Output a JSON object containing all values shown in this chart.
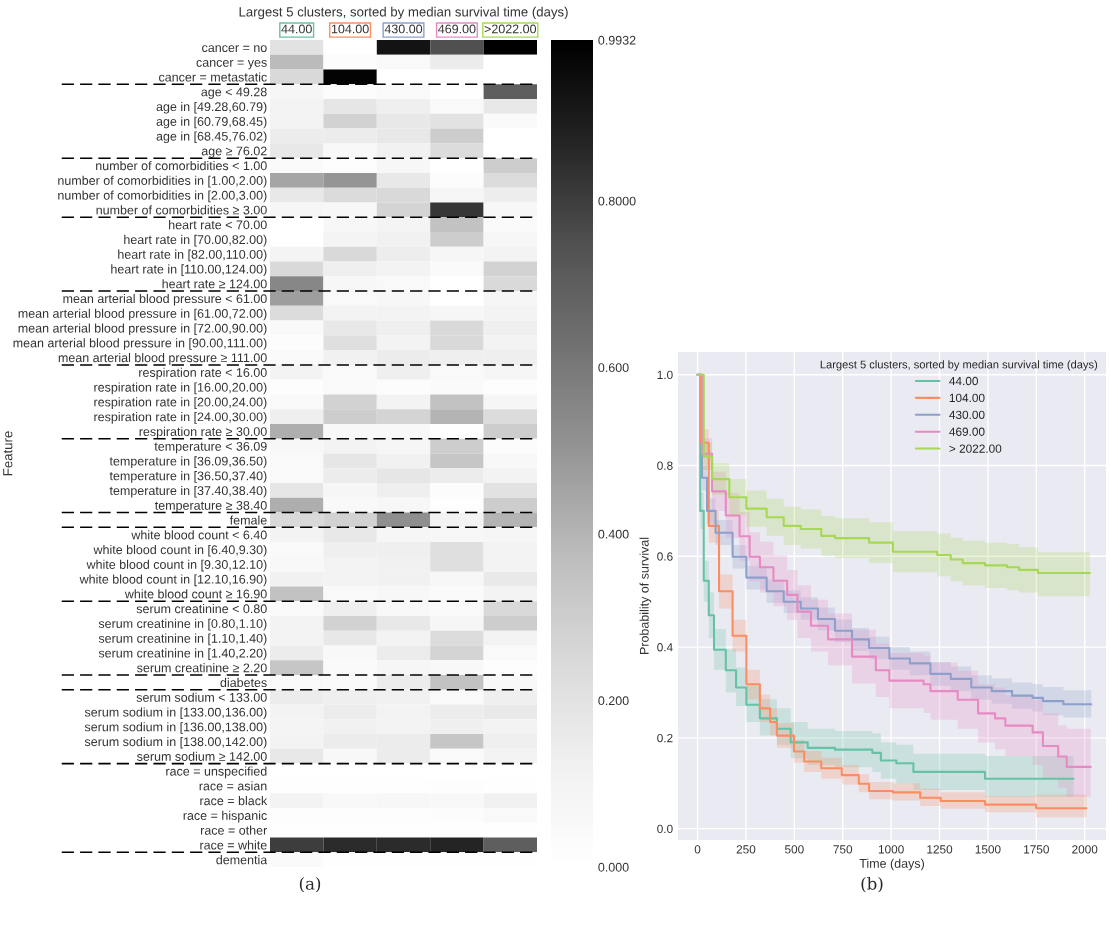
{
  "chart_data": [
    {
      "type": "heatmap",
      "title": "Largest 5 clusters, sorted by median survival time (days)",
      "ylabel": "Feature",
      "categories": [
        "44.00",
        "104.00",
        "430.00",
        "469.00",
        ">2022.00"
      ],
      "colors": [
        "#66c2a5",
        "#fc8d62",
        "#8da0cb",
        "#e78ac3",
        "#a6d854"
      ],
      "y_categories": [
        "cancer = no",
        "cancer = yes",
        "cancer = metastatic",
        "age < 49.28",
        "age in [49.28,60.79)",
        "age in [60.79,68.45)",
        "age in [68.45,76.02)",
        "age ≥ 76.02",
        "number of comorbidities < 1.00",
        "number of comorbidities in [1.00,2.00)",
        "number of comorbidities in [2.00,3.00)",
        "number of comorbidities ≥ 3.00",
        "heart rate < 70.00",
        "heart rate in [70.00,82.00)",
        "heart rate in [82.00,110.00)",
        "heart rate in [110.00,124.00)",
        "heart rate ≥ 124.00",
        "mean arterial blood pressure < 61.00",
        "mean arterial blood pressure in [61.00,72.00)",
        "mean arterial blood pressure in [72.00,90.00)",
        "mean arterial blood pressure in [90.00,111.00)",
        "mean arterial blood pressure ≥ 111.00",
        "respiration rate < 16.00",
        "respiration rate in [16.00,20.00)",
        "respiration rate in [20.00,24.00)",
        "respiration rate in [24.00,30.00)",
        "respiration rate ≥ 30.00",
        "temperature < 36.09",
        "temperature in [36.09,36.50)",
        "temperature in [36.50,37.40)",
        "temperature in [37.40,38.40)",
        "temperature ≥ 38.40",
        "female",
        "white blood count < 6.40",
        "white blood count in [6.40,9.30)",
        "white blood count in [9.30,12.10)",
        "white blood count in [12.10,16.90)",
        "white blood count ≥ 16.90",
        "serum creatinine < 0.80",
        "serum creatinine in [0.80,1.10)",
        "serum creatinine in [1.10,1.40)",
        "serum creatinine in [1.40,2.20)",
        "serum creatinine ≥ 2.20",
        "diabetes",
        "serum sodium < 133.00",
        "serum sodium in [133.00,136.00)",
        "serum sodium in [136.00,138.00)",
        "serum sodium in [138.00,142.00)",
        "serum sodium ≥ 142.00",
        "race = unspecified",
        "race = asian",
        "race = black",
        "race = hispanic",
        "race = other",
        "race = white",
        "dementia"
      ],
      "cells": [
        [
          0.2,
          0.0,
          0.93,
          0.75,
          0.99
        ],
        [
          0.38,
          0.03,
          0.05,
          0.15,
          0.0
        ],
        [
          0.25,
          0.98,
          0.0,
          0.0,
          0.0
        ],
        [
          0.08,
          0.03,
          0.05,
          0.01,
          0.7
        ],
        [
          0.1,
          0.18,
          0.13,
          0.05,
          0.17
        ],
        [
          0.1,
          0.28,
          0.17,
          0.2,
          0.04
        ],
        [
          0.15,
          0.15,
          0.17,
          0.3,
          0.0
        ],
        [
          0.17,
          0.06,
          0.12,
          0.23,
          0.0
        ],
        [
          0.04,
          0.02,
          0.07,
          0.0,
          0.3
        ],
        [
          0.45,
          0.5,
          0.17,
          0.03,
          0.23
        ],
        [
          0.17,
          0.24,
          0.25,
          0.08,
          0.14
        ],
        [
          0.08,
          0.07,
          0.27,
          0.82,
          0.07
        ],
        [
          0.0,
          0.07,
          0.09,
          0.35,
          0.04
        ],
        [
          0.0,
          0.09,
          0.12,
          0.3,
          0.07
        ],
        [
          0.09,
          0.25,
          0.14,
          0.08,
          0.1
        ],
        [
          0.25,
          0.13,
          0.1,
          0.04,
          0.28
        ],
        [
          0.55,
          0.07,
          0.05,
          0.0,
          0.25
        ],
        [
          0.47,
          0.05,
          0.07,
          0.0,
          0.08
        ],
        [
          0.23,
          0.1,
          0.1,
          0.08,
          0.1
        ],
        [
          0.05,
          0.17,
          0.13,
          0.25,
          0.13
        ],
        [
          0.03,
          0.22,
          0.1,
          0.25,
          0.1
        ],
        [
          0.05,
          0.12,
          0.15,
          0.13,
          0.13
        ],
        [
          0.1,
          0.05,
          0.13,
          0.05,
          0.08
        ],
        [
          0.02,
          0.05,
          0.03,
          0.04,
          0.02
        ],
        [
          0.05,
          0.28,
          0.1,
          0.35,
          0.08
        ],
        [
          0.13,
          0.3,
          0.27,
          0.4,
          0.23
        ],
        [
          0.42,
          0.06,
          0.06,
          0.01,
          0.3
        ],
        [
          0.07,
          0.1,
          0.08,
          0.3,
          0.03
        ],
        [
          0.05,
          0.18,
          0.12,
          0.33,
          0.06
        ],
        [
          0.05,
          0.15,
          0.18,
          0.15,
          0.1
        ],
        [
          0.18,
          0.08,
          0.13,
          0.03,
          0.2
        ],
        [
          0.42,
          0.05,
          0.07,
          0.01,
          0.3
        ],
        [
          0.25,
          0.28,
          0.52,
          0.1,
          0.4
        ],
        [
          0.1,
          0.17,
          0.08,
          0.07,
          0.08
        ],
        [
          0.05,
          0.13,
          0.13,
          0.22,
          0.1
        ],
        [
          0.06,
          0.1,
          0.12,
          0.22,
          0.1
        ],
        [
          0.12,
          0.1,
          0.12,
          0.07,
          0.16
        ],
        [
          0.35,
          0.05,
          0.07,
          0.04,
          0.1
        ],
        [
          0.04,
          0.13,
          0.06,
          0.04,
          0.25
        ],
        [
          0.1,
          0.28,
          0.17,
          0.08,
          0.3
        ],
        [
          0.1,
          0.17,
          0.1,
          0.23,
          0.1
        ],
        [
          0.15,
          0.06,
          0.15,
          0.27,
          0.05
        ],
        [
          0.33,
          0.04,
          0.08,
          0.06,
          0.02
        ],
        [
          0.05,
          0.04,
          0.15,
          0.35,
          0.06
        ],
        [
          0.15,
          0.13,
          0.12,
          0.05,
          0.13
        ],
        [
          0.1,
          0.15,
          0.1,
          0.15,
          0.16
        ],
        [
          0.09,
          0.12,
          0.1,
          0.13,
          0.1
        ],
        [
          0.1,
          0.15,
          0.15,
          0.33,
          0.13
        ],
        [
          0.17,
          0.06,
          0.15,
          0.05,
          0.1
        ],
        [
          0.0,
          0.0,
          0.0,
          0.0,
          0.0
        ],
        [
          0.01,
          0.01,
          0.01,
          0.02,
          0.01
        ],
        [
          0.1,
          0.06,
          0.07,
          0.06,
          0.12
        ],
        [
          0.02,
          0.02,
          0.02,
          0.03,
          0.05
        ],
        [
          0.01,
          0.01,
          0.01,
          0.01,
          0.01
        ],
        [
          0.8,
          0.85,
          0.85,
          0.87,
          0.7
        ],
        [
          0.04,
          0.01,
          0.01,
          0.01,
          0.01
        ]
      ],
      "clim": [
        0,
        0.9932
      ],
      "cticks": [
        {
          "value": 0,
          "label": "0.000"
        },
        {
          "value": 0.2,
          "label": "0.200"
        },
        {
          "value": 0.4,
          "label": "0.400"
        },
        {
          "value": 0.6,
          "label": "0.600"
        },
        {
          "value": 0.8,
          "label": "0.8000"
        },
        {
          "value": 0.9932,
          "label": "0.9932"
        }
      ],
      "annotations": [
        "(a)"
      ]
    },
    {
      "type": "step",
      "xlabel": "Time (days)",
      "ylabel": "Probability of survival",
      "legend_title": "Largest 5 clusters, sorted by median survival time (days)",
      "xlim": [
        -101,
        2110
      ],
      "ylim": [
        -0.025,
        1.05
      ],
      "xticks": [
        0,
        250,
        500,
        750,
        1000,
        1250,
        1500,
        1750,
        2000
      ],
      "yticks": [
        {
          "value": 0,
          "label": "0.0"
        },
        {
          "value": 0.2,
          "label": "0.2"
        },
        {
          "value": 0.4,
          "label": "0.4"
        },
        {
          "value": 0.6,
          "label": "0.6"
        },
        {
          "value": 0.8,
          "label": "0.8"
        },
        {
          "value": 1,
          "label": "1.0"
        }
      ],
      "grid": true,
      "legend": "top right",
      "series": [
        {
          "name": "44.00",
          "color": "#66c2a5",
          "x": [
            0,
            14,
            32,
            58,
            85,
            146,
            199,
            252,
            322,
            410,
            481,
            569,
            710,
            903,
            947,
            1027,
            1115,
            1485,
            1942
          ],
          "values": [
            1,
            0.7,
            0.546,
            0.47,
            0.394,
            0.349,
            0.311,
            0.273,
            0.243,
            0.22,
            0.19,
            0.178,
            0.174,
            0.167,
            0.15,
            0.144,
            0.125,
            0.11,
            0.11
          ],
          "lower": [
            1,
            0.66,
            0.5,
            0.42,
            0.35,
            0.3,
            0.27,
            0.235,
            0.205,
            0.185,
            0.155,
            0.14,
            0.135,
            0.125,
            0.11,
            0.1,
            0.085,
            0.07,
            0.07
          ],
          "upper": [
            1,
            0.74,
            0.59,
            0.52,
            0.44,
            0.395,
            0.355,
            0.315,
            0.285,
            0.265,
            0.235,
            0.22,
            0.215,
            0.21,
            0.19,
            0.185,
            0.165,
            0.16,
            0.16
          ]
        },
        {
          "name": "104.00",
          "color": "#fc8d62",
          "x": [
            0,
            18,
            58,
            111,
            181,
            252,
            322,
            375,
            410,
            498,
            551,
            639,
            745,
            833,
            886,
            1009,
            1150,
            1256,
            1485,
            1749,
            2009
          ],
          "values": [
            1,
            0.85,
            0.667,
            0.523,
            0.425,
            0.318,
            0.265,
            0.235,
            0.205,
            0.17,
            0.148,
            0.133,
            0.118,
            0.099,
            0.083,
            0.08,
            0.068,
            0.061,
            0.053,
            0.045,
            0.045
          ],
          "lower": [
            1,
            0.82,
            0.63,
            0.485,
            0.39,
            0.285,
            0.235,
            0.205,
            0.178,
            0.145,
            0.125,
            0.11,
            0.097,
            0.08,
            0.065,
            0.062,
            0.05,
            0.044,
            0.036,
            0.025,
            0.025
          ],
          "upper": [
            1,
            0.88,
            0.7,
            0.56,
            0.46,
            0.35,
            0.295,
            0.265,
            0.232,
            0.195,
            0.171,
            0.156,
            0.14,
            0.12,
            0.103,
            0.1,
            0.088,
            0.08,
            0.072,
            0.075,
            0.075
          ]
        },
        {
          "name": "430.00",
          "color": "#8da0cb",
          "x": [
            0,
            23,
            49,
            93,
            181,
            252,
            357,
            445,
            533,
            622,
            710,
            798,
            886,
            991,
            1097,
            1203,
            1308,
            1414,
            1520,
            1625,
            1731,
            1784,
            1890,
            2034
          ],
          "values": [
            1,
            0.773,
            0.7,
            0.652,
            0.599,
            0.553,
            0.523,
            0.5,
            0.485,
            0.462,
            0.436,
            0.417,
            0.398,
            0.375,
            0.364,
            0.341,
            0.33,
            0.311,
            0.303,
            0.293,
            0.288,
            0.281,
            0.274,
            0.274
          ],
          "lower": [
            1,
            0.745,
            0.672,
            0.625,
            0.573,
            0.527,
            0.497,
            0.475,
            0.46,
            0.437,
            0.411,
            0.392,
            0.373,
            0.35,
            0.338,
            0.315,
            0.303,
            0.284,
            0.275,
            0.264,
            0.258,
            0.25,
            0.245,
            0.245
          ],
          "upper": [
            1,
            0.8,
            0.728,
            0.68,
            0.625,
            0.579,
            0.549,
            0.525,
            0.51,
            0.487,
            0.461,
            0.442,
            0.423,
            0.4,
            0.39,
            0.367,
            0.357,
            0.338,
            0.331,
            0.322,
            0.318,
            0.312,
            0.305,
            0.305
          ]
        },
        {
          "name": "469.00",
          "color": "#e78ac3",
          "x": [
            0,
            23,
            75,
            146,
            217,
            269,
            322,
            392,
            463,
            516,
            586,
            674,
            798,
            921,
            991,
            1168,
            1203,
            1344,
            1449,
            1537,
            1590,
            1731,
            1784,
            1863,
            1907,
            2031
          ],
          "values": [
            1,
            0.826,
            0.743,
            0.69,
            0.644,
            0.599,
            0.576,
            0.546,
            0.515,
            0.478,
            0.447,
            0.417,
            0.379,
            0.349,
            0.326,
            0.318,
            0.303,
            0.284,
            0.254,
            0.243,
            0.227,
            0.212,
            0.182,
            0.159,
            0.136,
            0.136
          ],
          "lower": [
            1,
            0.79,
            0.7,
            0.64,
            0.59,
            0.545,
            0.52,
            0.49,
            0.46,
            0.42,
            0.39,
            0.36,
            0.32,
            0.29,
            0.265,
            0.255,
            0.24,
            0.22,
            0.19,
            0.175,
            0.16,
            0.14,
            0.11,
            0.09,
            0.07,
            0.07
          ],
          "upper": [
            1,
            0.86,
            0.786,
            0.74,
            0.698,
            0.653,
            0.632,
            0.602,
            0.57,
            0.536,
            0.504,
            0.474,
            0.438,
            0.408,
            0.387,
            0.381,
            0.366,
            0.348,
            0.318,
            0.311,
            0.294,
            0.284,
            0.254,
            0.228,
            0.22,
            0.22
          ]
        },
        {
          "name": "> 2022.00",
          "color": "#a6d854",
          "x": [
            0,
            32,
            75,
            164,
            252,
            357,
            445,
            533,
            639,
            710,
            886,
            1009,
            1238,
            1308,
            1370,
            1485,
            1599,
            1661,
            1758,
            2027
          ],
          "values": [
            1,
            0.82,
            0.77,
            0.73,
            0.705,
            0.686,
            0.667,
            0.66,
            0.645,
            0.64,
            0.63,
            0.61,
            0.603,
            0.593,
            0.585,
            0.58,
            0.576,
            0.57,
            0.563,
            0.563
          ],
          "lower": [
            1,
            0.79,
            0.735,
            0.69,
            0.665,
            0.645,
            0.625,
            0.617,
            0.601,
            0.596,
            0.585,
            0.565,
            0.556,
            0.545,
            0.536,
            0.53,
            0.525,
            0.52,
            0.512,
            0.512
          ],
          "upper": [
            1,
            0.85,
            0.805,
            0.77,
            0.745,
            0.727,
            0.709,
            0.703,
            0.689,
            0.684,
            0.675,
            0.655,
            0.65,
            0.641,
            0.634,
            0.63,
            0.627,
            0.62,
            0.609,
            0.609
          ]
        }
      ],
      "annotations": [
        "(b)"
      ]
    }
  ]
}
